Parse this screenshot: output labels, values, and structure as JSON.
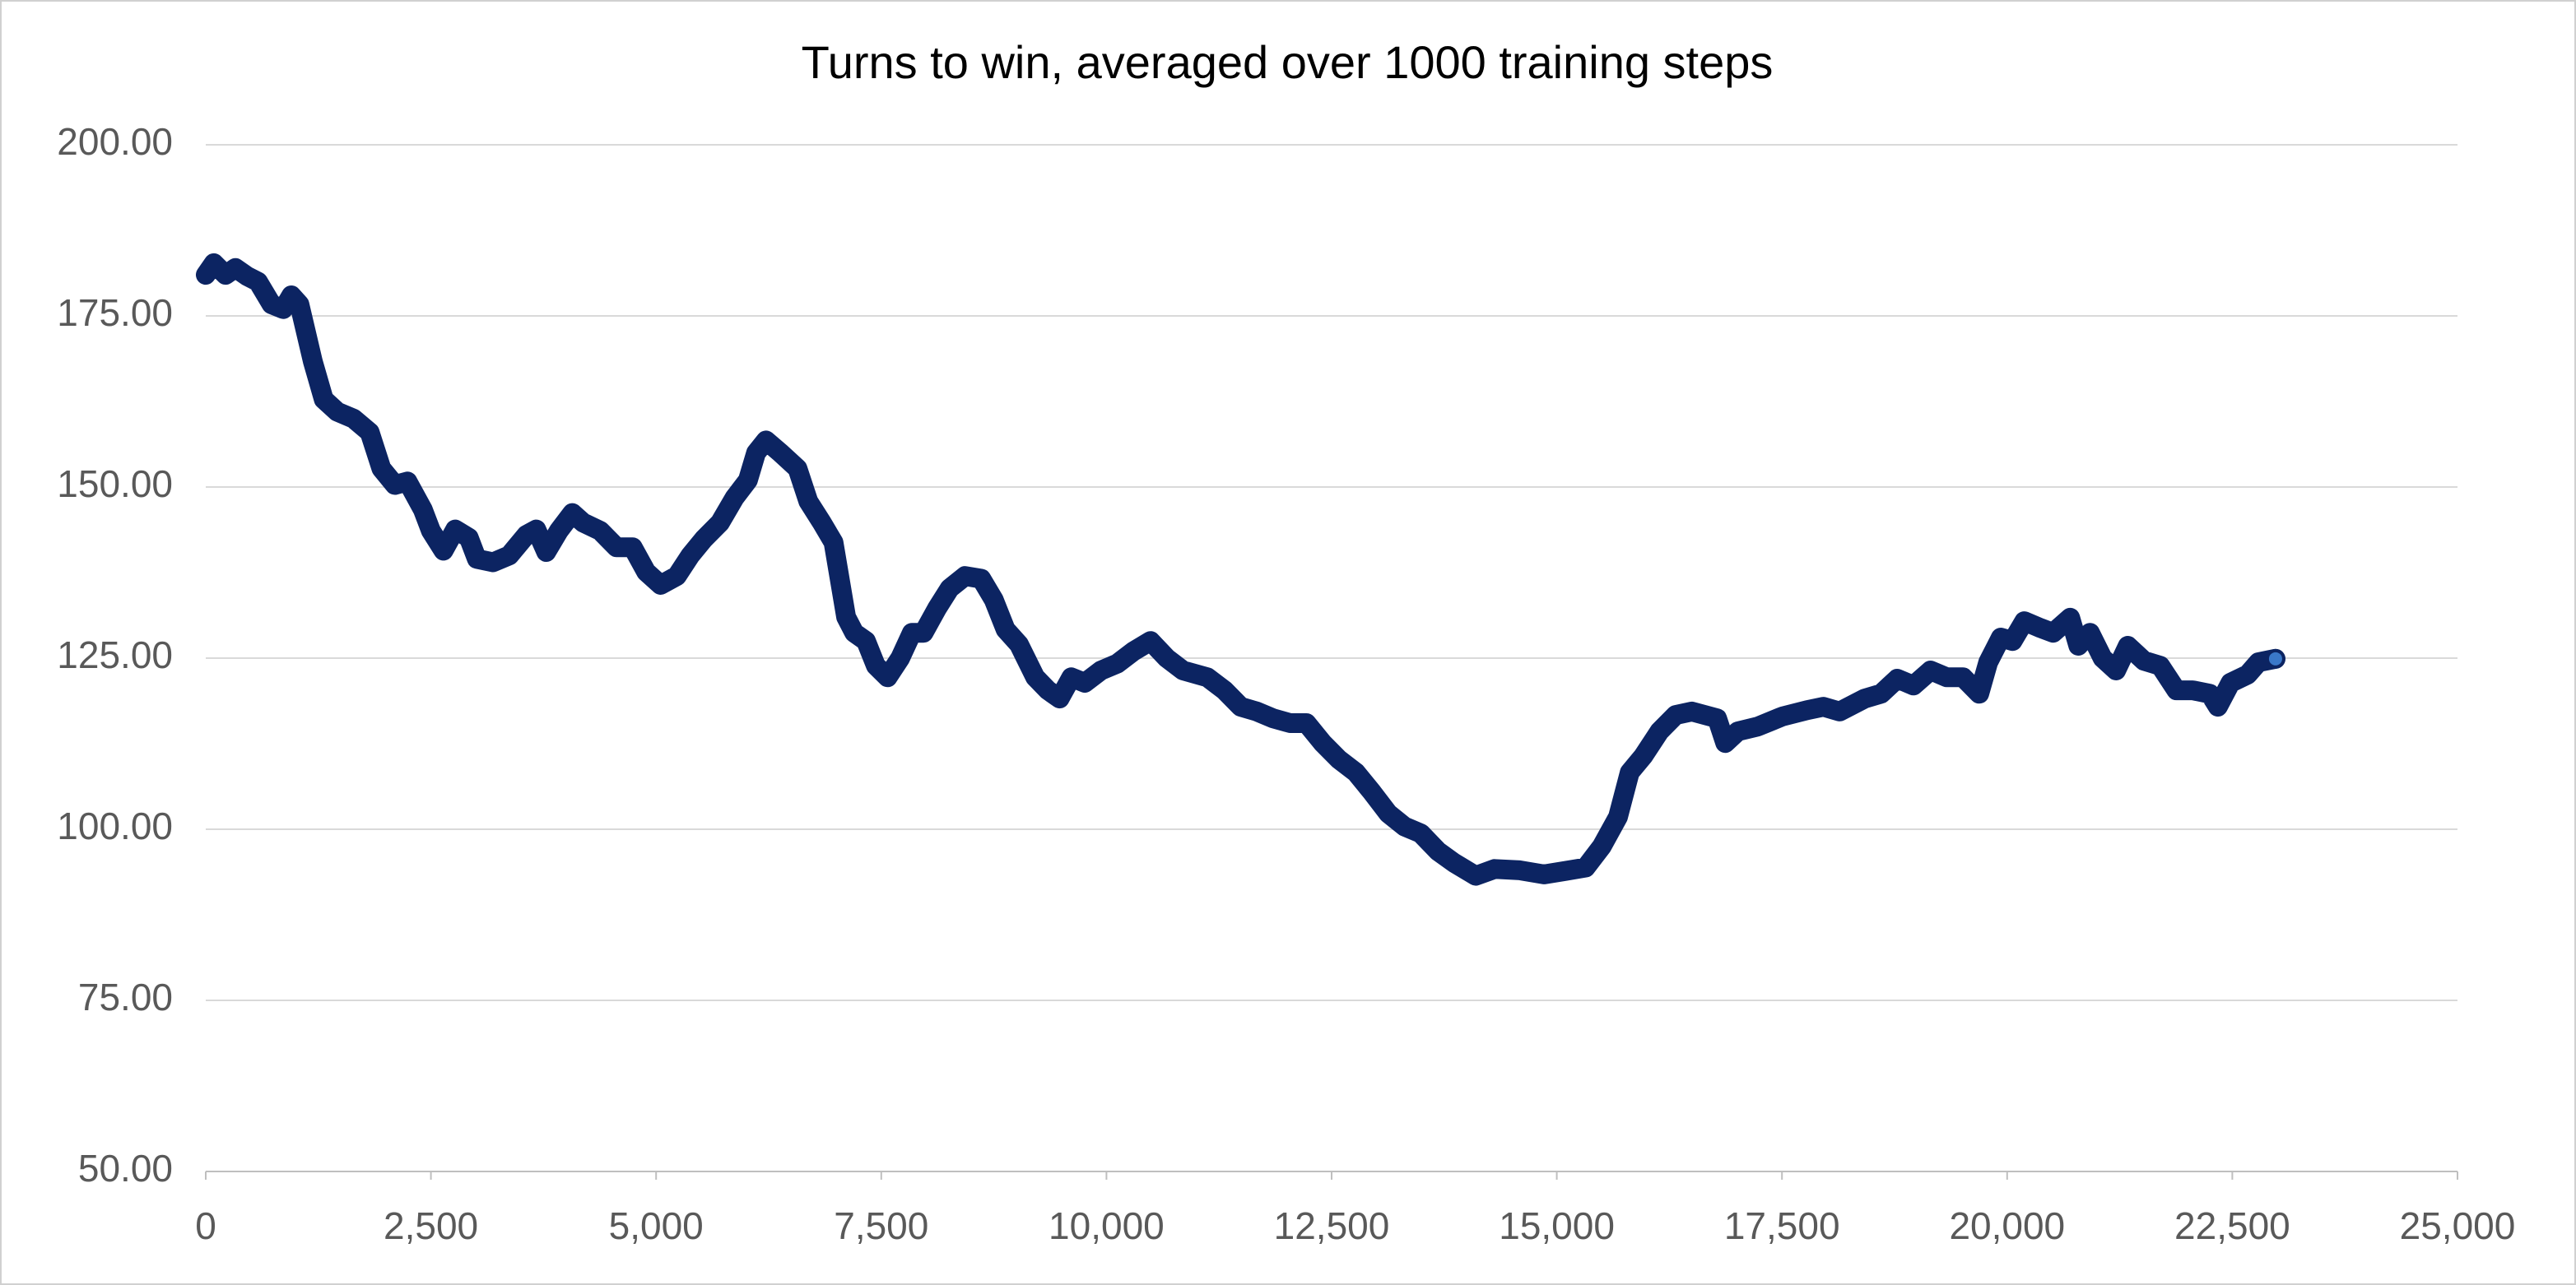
{
  "chart_data": {
    "type": "line",
    "title": "Turns to win, averaged over 1000 training steps",
    "x": [
      0,
      90,
      220,
      330,
      460,
      580,
      730,
      860,
      950,
      1040,
      1190,
      1310,
      1460,
      1640,
      1820,
      1950,
      2100,
      2240,
      2410,
      2500,
      2640,
      2770,
      2920,
      3010,
      3190,
      3370,
      3560,
      3670,
      3780,
      3920,
      4070,
      4190,
      4380,
      4560,
      4740,
      4890,
      5050,
      5230,
      5380,
      5530,
      5710,
      5870,
      6020,
      6110,
      6220,
      6380,
      6570,
      6690,
      6840,
      6970,
      7110,
      7200,
      7330,
      7440,
      7570,
      7710,
      7840,
      7970,
      8120,
      8260,
      8430,
      8610,
      8750,
      8880,
      9030,
      9210,
      9350,
      9480,
      9610,
      9760,
      9940,
      10120,
      10300,
      10490,
      10670,
      10850,
      11120,
      11310,
      11490,
      11670,
      11850,
      12040,
      12220,
      12400,
      12580,
      12770,
      12950,
      13130,
      13310,
      13490,
      13680,
      13860,
      14100,
      14310,
      14590,
      14860,
      15140,
      15320,
      15500,
      15680,
      15810,
      15960,
      16140,
      16320,
      16500,
      16780,
      16870,
      17010,
      17230,
      17510,
      17780,
      17960,
      18140,
      18420,
      18600,
      18780,
      18960,
      19150,
      19330,
      19510,
      19690,
      19790,
      19930,
      20060,
      20190,
      20370,
      20510,
      20700,
      20790,
      20920,
      21060,
      21210,
      21340,
      21520,
      21700,
      21880,
      22060,
      22250,
      22340,
      22480,
      22670,
      22790,
      22980
    ],
    "values": [
      181,
      182.7,
      181,
      182,
      180.8,
      180,
      176.7,
      176,
      178,
      176.7,
      168.3,
      162.8,
      161,
      160,
      158,
      152.7,
      150.3,
      150.8,
      146.7,
      143.6,
      140.7,
      143.8,
      142.6,
      139.5,
      139,
      140,
      143,
      143.8,
      140.5,
      143.6,
      146.2,
      144.8,
      143.6,
      141.2,
      141.2,
      137.6,
      135.7,
      137,
      140,
      142.4,
      144.8,
      148.4,
      151,
      155,
      156.8,
      155,
      152.7,
      147.9,
      144.8,
      141.9,
      131,
      128.7,
      127.5,
      123.9,
      122.2,
      125,
      128.7,
      128.7,
      132.3,
      135.2,
      137,
      136.6,
      133.5,
      129.2,
      127,
      122.2,
      120.3,
      119.1,
      122.2,
      121.4,
      123.2,
      124.2,
      126,
      127.5,
      125,
      123.2,
      122.2,
      120.3,
      117.9,
      117.2,
      116.2,
      115.5,
      115.5,
      112.6,
      110.2,
      108.3,
      105.4,
      102.3,
      100.4,
      99.4,
      96.8,
      95.1,
      93.2,
      94.2,
      94,
      93.4,
      94,
      94.4,
      97.5,
      101.8,
      108.3,
      110.7,
      114.3,
      116.7,
      117.2,
      116.2,
      112.6,
      114.3,
      115,
      116.5,
      117.4,
      117.9,
      117.2,
      119.1,
      119.8,
      122,
      121,
      123.2,
      122.2,
      122.2,
      119.8,
      124.4,
      128,
      127.5,
      130.4,
      129.4,
      128.7,
      130.9,
      126.8,
      128.7,
      125,
      123.2,
      126.8,
      124.6,
      123.9,
      120.3,
      120.3,
      119.8,
      117.9,
      121.4,
      122.6,
      124.4,
      124.9
    ],
    "color": "#0c2462",
    "end_marker_color": "#3a78c9",
    "xlim": [
      0,
      25000
    ],
    "xticks": [
      0,
      {
        "value": 2500,
        "label": "2,500"
      },
      {
        "value": 5000,
        "label": "5,000"
      },
      {
        "value": 7500,
        "label": "7,500"
      },
      {
        "value": 10000,
        "label": "10,000"
      },
      {
        "value": 12500,
        "label": "12,500"
      },
      {
        "value": 15000,
        "label": "15,000"
      },
      {
        "value": 17500,
        "label": "17,500"
      },
      {
        "value": 20000,
        "label": "20,000"
      },
      {
        "value": 22500,
        "label": "22,500"
      },
      {
        "value": 25000,
        "label": "25,000"
      }
    ],
    "ylim": [
      50,
      200
    ],
    "yticks": [
      {
        "value": 50,
        "label": "50.00"
      },
      {
        "value": 75,
        "label": "75.00"
      },
      {
        "value": 100,
        "label": "100.00"
      },
      {
        "value": 125,
        "label": "125.00"
      },
      {
        "value": 150,
        "label": "150.00"
      },
      {
        "value": 175,
        "label": "175.00"
      },
      {
        "value": 200,
        "label": "200.00"
      }
    ],
    "grid": true
  }
}
